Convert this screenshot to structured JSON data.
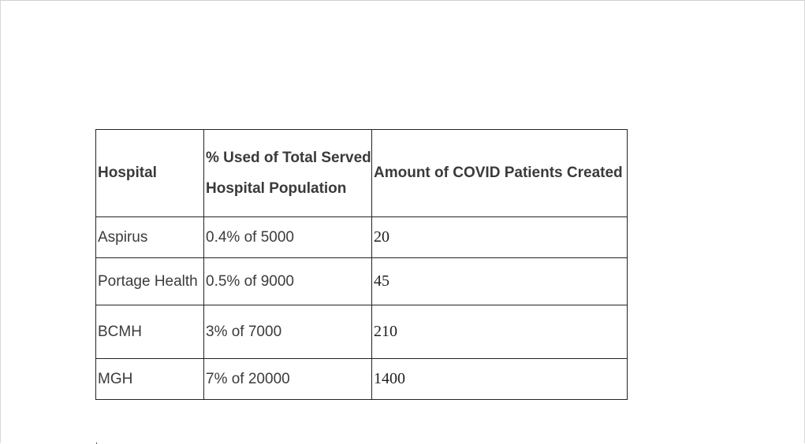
{
  "table": {
    "headers": {
      "hospital": "Hospital",
      "percent_line1": "% Used of Total Served",
      "percent_line2": "Hospital Population",
      "amount": "Amount of COVID Patients Created"
    },
    "rows": [
      {
        "hospital": "Aspirus",
        "percent": "0.4% of 5000",
        "amount": "20"
      },
      {
        "hospital": "Portage Health",
        "percent": "0.5% of 9000",
        "amount": "45"
      },
      {
        "hospital": "BCMH",
        "percent": "3% of 7000",
        "amount": "210"
      },
      {
        "hospital": "MGH",
        "percent": "7% of 20000",
        "amount": "1400"
      }
    ]
  }
}
